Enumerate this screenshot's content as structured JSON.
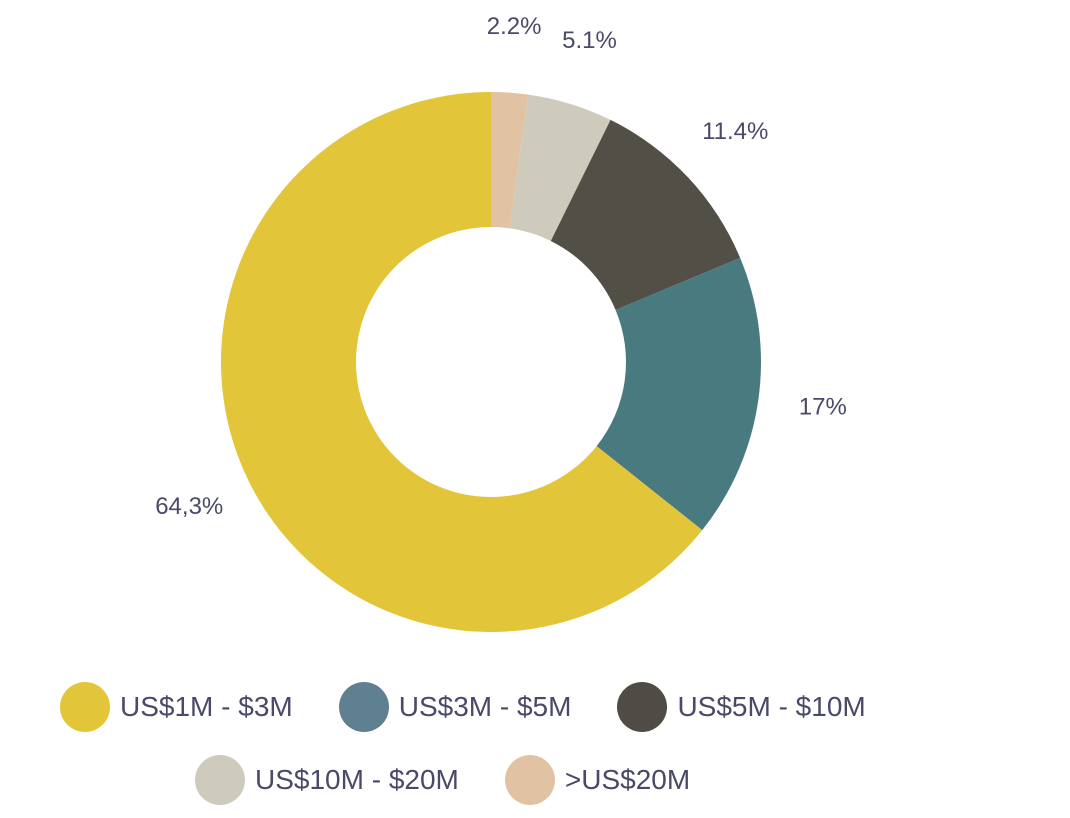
{
  "chart_data": {
    "type": "pie",
    "donut": true,
    "title": "",
    "slices": [
      {
        "label": "US$1M - $3M",
        "value": 64.3,
        "display": "64,3%",
        "color": "#E3C53A"
      },
      {
        "label": "US$3M - $5M",
        "value": 17,
        "display": "17%",
        "color": "#497A80"
      },
      {
        "label": "US$5M - $10M",
        "value": 11.4,
        "display": "11.4%",
        "color": "#524F47"
      },
      {
        "label": "US$10M - $20M",
        "value": 5.1,
        "display": "5.1%",
        "color": "#CFCBBC"
      },
      {
        "label": ">US$20M",
        "value": 2.2,
        "display": "2.2%",
        "color": "#E1C3A3"
      }
    ],
    "legend": {
      "position": "bottom",
      "rows": [
        [
          {
            "label": "US$1M - $3M",
            "color": "#E3C53A"
          },
          {
            "label": "US$3M - $5M",
            "color": "#5E8090"
          },
          {
            "label": "US$5M - $10M",
            "color": "#4F4C45"
          }
        ],
        [
          {
            "label": "US$10M - $20M",
            "color": "#CFCBBC"
          },
          {
            "label": ">US$20M",
            "color": "#E1C3A3"
          }
        ]
      ]
    }
  }
}
